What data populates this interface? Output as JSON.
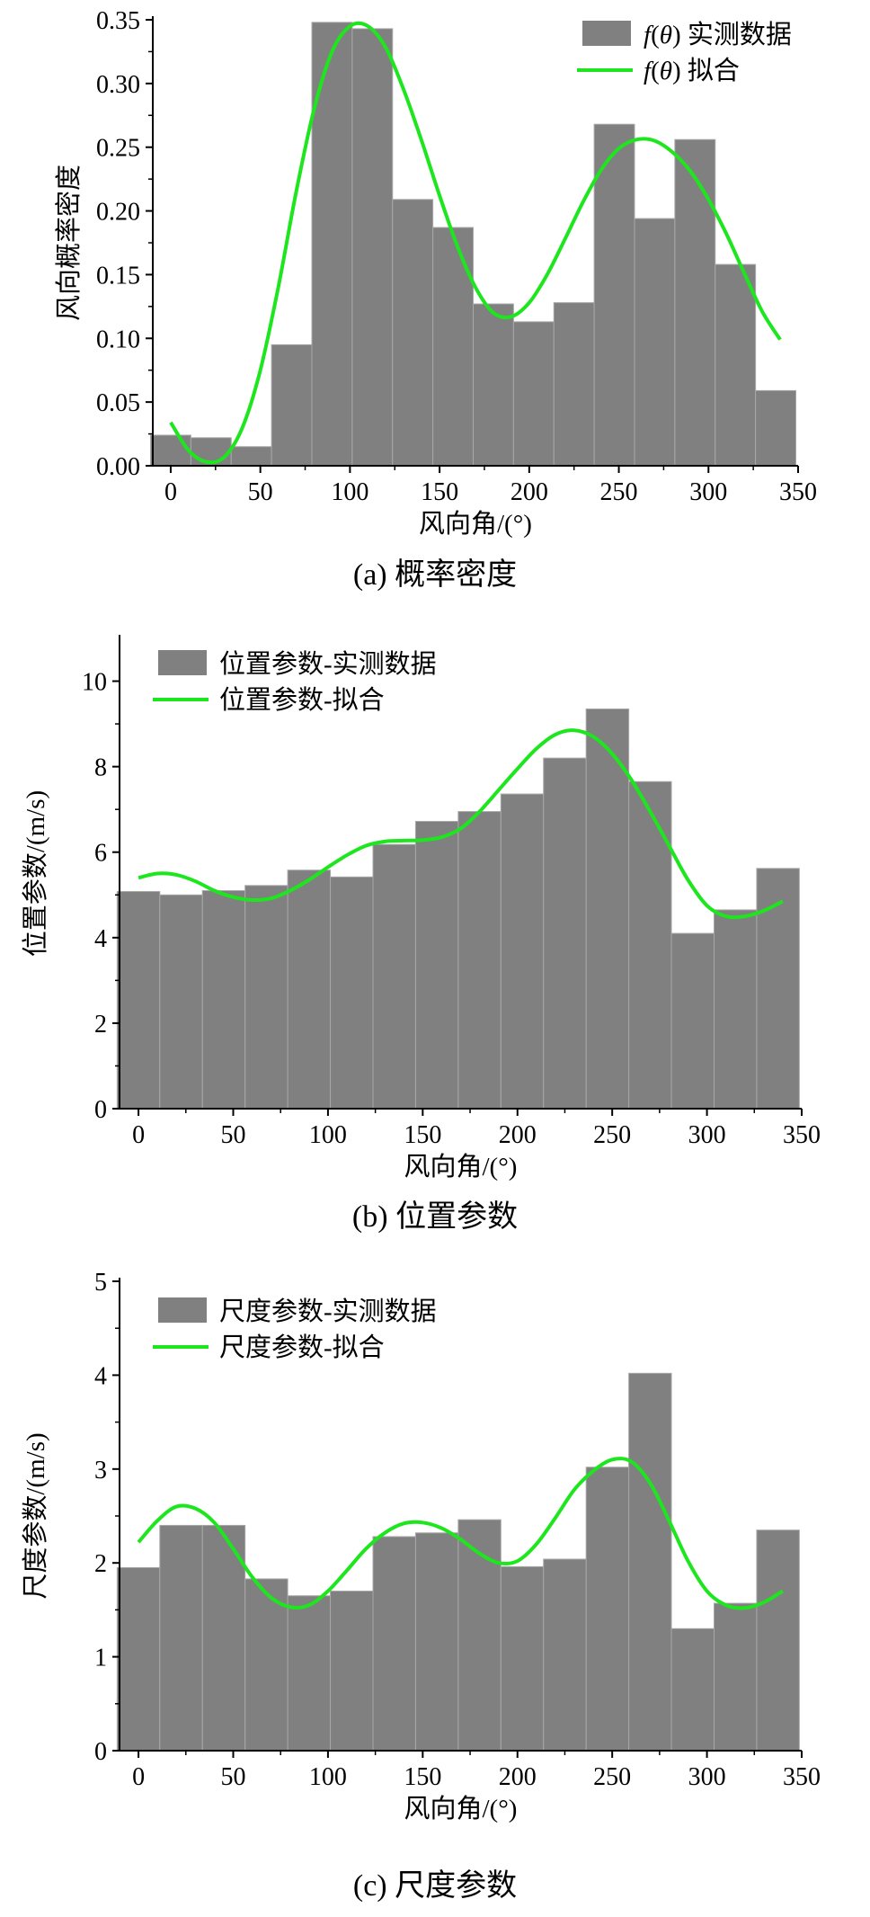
{
  "colors": {
    "bar": "#808080",
    "bar_edge": "#a8a8a8",
    "fit": "#1ee61e",
    "axis": "#000000"
  },
  "chart_data": [
    {
      "type": "bar",
      "panel": "a",
      "caption": "(a)  概率密度",
      "xlabel": "风向角/(°)",
      "ylabel": "风向概率密度",
      "xlim": [
        -10,
        350
      ],
      "ylim": [
        0,
        0.35
      ],
      "xticks": [
        0,
        50,
        100,
        150,
        200,
        250,
        300,
        350
      ],
      "yticks": [
        0.0,
        0.05,
        0.1,
        0.15,
        0.2,
        0.25,
        0.3,
        0.35
      ],
      "ytick_decimals": 2,
      "bin_width": 22.5,
      "legend_position": "top-right",
      "legend": {
        "bar": "f(θ) 实测数据",
        "line": "f(θ) 拟合"
      },
      "series": [
        {
          "type": "bar",
          "x": [
            0,
            22.5,
            45,
            67.5,
            90,
            112.5,
            135,
            157.5,
            180,
            202.5,
            225,
            247.5,
            270,
            292.5,
            315,
            337.5
          ],
          "values": [
            0.024,
            0.022,
            0.015,
            0.095,
            0.348,
            0.343,
            0.209,
            0.187,
            0.127,
            0.113,
            0.128,
            0.268,
            0.194,
            0.256,
            0.158,
            0.059
          ]
        },
        {
          "type": "line",
          "x": [
            0,
            10,
            20,
            30,
            40,
            50,
            60,
            70,
            80,
            90,
            100,
            110,
            120,
            130,
            140,
            150,
            160,
            170,
            180,
            190,
            200,
            210,
            220,
            230,
            240,
            250,
            260,
            270,
            280,
            290,
            300,
            310,
            320,
            330,
            340
          ],
          "values": [
            0.034,
            0.012,
            0.003,
            0.007,
            0.03,
            0.075,
            0.14,
            0.215,
            0.28,
            0.325,
            0.345,
            0.345,
            0.328,
            0.295,
            0.255,
            0.212,
            0.172,
            0.14,
            0.12,
            0.117,
            0.128,
            0.15,
            0.178,
            0.207,
            0.232,
            0.249,
            0.256,
            0.255,
            0.246,
            0.231,
            0.209,
            0.182,
            0.151,
            0.121,
            0.099
          ]
        }
      ]
    },
    {
      "type": "bar",
      "panel": "b",
      "caption": "(b)  位置参数",
      "xlabel": "风向角/(°)",
      "ylabel": "位置参数/(m/s)",
      "xlim": [
        -10,
        350
      ],
      "ylim": [
        0,
        11
      ],
      "xticks": [
        0,
        50,
        100,
        150,
        200,
        250,
        300,
        350
      ],
      "yticks": [
        0,
        2,
        4,
        6,
        8,
        10
      ],
      "ytick_decimals": 0,
      "bin_width": 22.5,
      "legend_position": "top-left",
      "legend": {
        "bar": "位置参数-实测数据",
        "line": "位置参数-拟合"
      },
      "series": [
        {
          "type": "bar",
          "x": [
            0,
            22.5,
            45,
            67.5,
            90,
            112.5,
            135,
            157.5,
            180,
            202.5,
            225,
            247.5,
            270,
            292.5,
            315,
            337.5
          ],
          "values": [
            5.08,
            5.0,
            5.1,
            5.22,
            5.58,
            5.42,
            6.18,
            6.72,
            6.95,
            7.36,
            8.2,
            9.35,
            7.65,
            4.1,
            4.65,
            5.62
          ]
        },
        {
          "type": "line",
          "x": [
            0,
            10,
            20,
            30,
            40,
            50,
            60,
            70,
            80,
            90,
            100,
            110,
            120,
            130,
            140,
            150,
            160,
            170,
            180,
            190,
            200,
            210,
            220,
            230,
            240,
            250,
            260,
            270,
            280,
            290,
            300,
            310,
            320,
            330,
            340
          ],
          "values": [
            5.4,
            5.5,
            5.47,
            5.32,
            5.1,
            4.95,
            4.88,
            4.92,
            5.1,
            5.35,
            5.65,
            5.93,
            6.15,
            6.25,
            6.27,
            6.28,
            6.35,
            6.55,
            6.95,
            7.45,
            7.95,
            8.42,
            8.75,
            8.85,
            8.7,
            8.3,
            7.7,
            6.95,
            6.15,
            5.35,
            4.75,
            4.5,
            4.5,
            4.63,
            4.85
          ]
        }
      ]
    },
    {
      "type": "bar",
      "panel": "c",
      "caption": "(c)  尺度参数",
      "xlabel": "风向角/(°)",
      "ylabel": "尺度参数/(m/s)",
      "xlim": [
        -10,
        350
      ],
      "ylim": [
        0,
        5
      ],
      "xticks": [
        0,
        50,
        100,
        150,
        200,
        250,
        300,
        350
      ],
      "yticks": [
        0,
        1,
        2,
        3,
        4,
        5
      ],
      "ytick_decimals": 0,
      "bin_width": 22.5,
      "legend_position": "top-left",
      "legend": {
        "bar": "尺度参数-实测数据",
        "line": "尺度参数-拟合"
      },
      "series": [
        {
          "type": "bar",
          "x": [
            0,
            22.5,
            45,
            67.5,
            90,
            112.5,
            135,
            157.5,
            180,
            202.5,
            225,
            247.5,
            270,
            292.5,
            315,
            337.5
          ],
          "values": [
            1.95,
            2.4,
            2.4,
            1.83,
            1.65,
            1.7,
            2.28,
            2.32,
            2.46,
            1.96,
            2.04,
            3.02,
            4.02,
            1.3,
            1.57,
            2.35
          ]
        },
        {
          "type": "line",
          "x": [
            0,
            10,
            20,
            30,
            40,
            50,
            60,
            70,
            80,
            90,
            100,
            110,
            120,
            130,
            140,
            150,
            160,
            170,
            180,
            190,
            200,
            210,
            220,
            230,
            240,
            250,
            260,
            270,
            280,
            290,
            300,
            310,
            320,
            330,
            340
          ],
          "values": [
            2.22,
            2.45,
            2.6,
            2.58,
            2.43,
            2.15,
            1.85,
            1.63,
            1.53,
            1.55,
            1.7,
            1.92,
            2.15,
            2.32,
            2.42,
            2.43,
            2.37,
            2.25,
            2.1,
            2.0,
            2.02,
            2.2,
            2.48,
            2.78,
            2.98,
            3.1,
            3.08,
            2.85,
            2.45,
            2.02,
            1.7,
            1.55,
            1.52,
            1.58,
            1.7
          ]
        }
      ]
    }
  ]
}
